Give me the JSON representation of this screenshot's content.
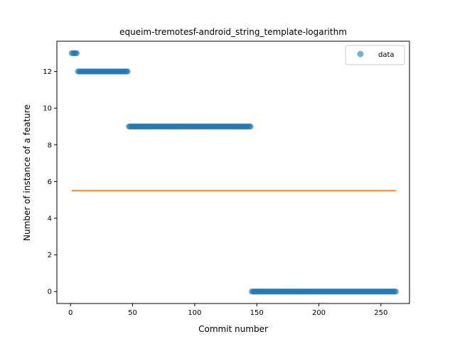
{
  "chart_data": {
    "type": "scatter",
    "title": "equeim-tremotesf-android_string_template-logarithm",
    "xlabel": "Commit number",
    "ylabel": "Number of instance of a feature",
    "xlim": [
      -11,
      273
    ],
    "ylim": [
      -0.65,
      13.65
    ],
    "xticks": [
      0,
      50,
      100,
      150,
      200,
      250
    ],
    "yticks": [
      0,
      2,
      4,
      6,
      8,
      10,
      12
    ],
    "grid": false,
    "legend_position": "top-right",
    "series": [
      {
        "name": "data",
        "kind": "scatter",
        "color": "#1f77b4",
        "segments": [
          {
            "x_start": 1,
            "x_end": 5,
            "y": 13
          },
          {
            "x_start": 6,
            "x_end": 46,
            "y": 12
          },
          {
            "x_start": 47,
            "x_end": 145,
            "y": 9
          },
          {
            "x_start": 146,
            "x_end": 262,
            "y": 0
          }
        ]
      },
      {
        "kind": "line",
        "color": "#ff7f0e",
        "x": [
          1,
          262
        ],
        "y": [
          5.5,
          5.5
        ]
      }
    ]
  }
}
